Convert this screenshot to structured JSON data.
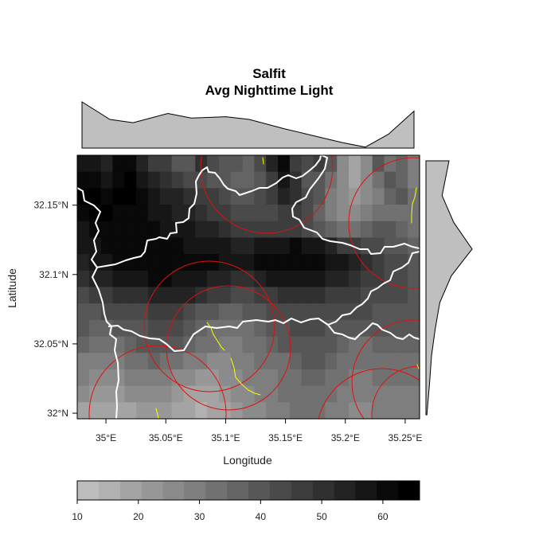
{
  "title": {
    "line1": "Salfit",
    "line2": "Avg Nighttime Light"
  },
  "axes": {
    "xlabel": "Longitude",
    "ylabel": "Latitude",
    "x_ticks": [
      {
        "value": 35.0,
        "label": "35°E"
      },
      {
        "value": 35.05,
        "label": "35.05°E"
      },
      {
        "value": 35.1,
        "label": "35.1°E"
      },
      {
        "value": 35.15,
        "label": "35.15°E"
      },
      {
        "value": 35.2,
        "label": "35.2°E"
      },
      {
        "value": 35.25,
        "label": "35.25°E"
      }
    ],
    "y_ticks": [
      {
        "value": 32.0,
        "label": "32°N"
      },
      {
        "value": 32.05,
        "label": "32.05°N"
      },
      {
        "value": 32.1,
        "label": "32.1°N"
      },
      {
        "value": 32.15,
        "label": "32.15°N"
      }
    ]
  },
  "chart_data": {
    "type": "heatmap",
    "description_note": "raster of average nighttime light with marginal density plots",
    "xlim": [
      34.976,
      35.262
    ],
    "ylim": [
      31.996,
      32.186
    ],
    "colorbar": {
      "min": 10,
      "max": 66,
      "ticks": [
        10,
        20,
        30,
        40,
        50,
        60
      ],
      "colors": [
        "#bdbdbd",
        "#b1b1b1",
        "#a4a4a4",
        "#989898",
        "#8b8b8b",
        "#7e7e7e",
        "#717171",
        "#646464",
        "#575757",
        "#4a4a4a",
        "#3d3d3d",
        "#303030",
        "#232323",
        "#161616",
        "#090909",
        "#000000"
      ]
    },
    "top_marginal": {
      "x": [
        34.976,
        35.0,
        35.02,
        35.05,
        35.07,
        35.1,
        35.12,
        35.15,
        35.17,
        35.2,
        35.22,
        35.24,
        35.262
      ],
      "density": [
        1.0,
        0.62,
        0.55,
        0.75,
        0.65,
        0.68,
        0.62,
        0.42,
        0.3,
        0.12,
        0.02,
        0.3,
        0.8
      ]
    },
    "right_marginal": {
      "y": [
        31.996,
        32.02,
        32.04,
        32.06,
        32.08,
        32.1,
        32.12,
        32.14,
        32.16,
        32.186
      ],
      "density": [
        0.02,
        0.08,
        0.12,
        0.2,
        0.3,
        0.55,
        1.0,
        0.6,
        0.35,
        0.5
      ]
    },
    "grid": [
      [
        58,
        58,
        52,
        60,
        60,
        54,
        48,
        46,
        40,
        40,
        50,
        44,
        38,
        38,
        36,
        42,
        54,
        60,
        46,
        44,
        46,
        40,
        26,
        18,
        26,
        40,
        34,
        36,
        28
      ],
      [
        60,
        62,
        56,
        62,
        64,
        58,
        54,
        50,
        46,
        42,
        44,
        40,
        38,
        36,
        36,
        40,
        48,
        58,
        50,
        40,
        40,
        32,
        26,
        20,
        24,
        34,
        38,
        36,
        30
      ],
      [
        64,
        64,
        62,
        64,
        64,
        60,
        56,
        54,
        52,
        50,
        48,
        46,
        42,
        40,
        40,
        42,
        46,
        52,
        50,
        44,
        38,
        30,
        24,
        22,
        24,
        30,
        36,
        38,
        32
      ],
      [
        62,
        64,
        64,
        62,
        62,
        62,
        58,
        56,
        54,
        52,
        50,
        48,
        46,
        44,
        42,
        42,
        44,
        46,
        46,
        42,
        36,
        30,
        26,
        26,
        28,
        32,
        34,
        34,
        32
      ],
      [
        58,
        60,
        62,
        62,
        62,
        62,
        60,
        58,
        58,
        56,
        54,
        52,
        50,
        48,
        46,
        46,
        46,
        46,
        46,
        44,
        40,
        36,
        34,
        34,
        36,
        38,
        38,
        36,
        34
      ],
      [
        56,
        58,
        60,
        62,
        62,
        62,
        62,
        62,
        60,
        58,
        58,
        58,
        56,
        54,
        54,
        56,
        58,
        58,
        60,
        58,
        56,
        52,
        48,
        46,
        44,
        42,
        40,
        38,
        36
      ],
      [
        54,
        56,
        58,
        60,
        60,
        62,
        62,
        62,
        62,
        60,
        60,
        60,
        58,
        58,
        58,
        60,
        62,
        62,
        62,
        62,
        60,
        58,
        56,
        52,
        50,
        46,
        44,
        42,
        40
      ],
      [
        50,
        52,
        54,
        58,
        58,
        58,
        60,
        60,
        58,
        56,
        56,
        54,
        52,
        50,
        50,
        52,
        56,
        58,
        58,
        58,
        56,
        54,
        52,
        50,
        48,
        46,
        44,
        42,
        40
      ],
      [
        44,
        46,
        48,
        50,
        50,
        50,
        52,
        54,
        54,
        52,
        50,
        48,
        46,
        44,
        44,
        46,
        48,
        50,
        50,
        50,
        50,
        48,
        46,
        46,
        44,
        44,
        42,
        42,
        40
      ],
      [
        40,
        40,
        42,
        44,
        44,
        44,
        46,
        48,
        48,
        44,
        40,
        38,
        36,
        36,
        38,
        40,
        42,
        44,
        44,
        44,
        44,
        42,
        42,
        42,
        42,
        40,
        40,
        40,
        40
      ],
      [
        38,
        36,
        36,
        38,
        40,
        40,
        42,
        44,
        42,
        40,
        36,
        34,
        32,
        32,
        34,
        36,
        38,
        40,
        42,
        42,
        42,
        40,
        38,
        38,
        38,
        38,
        38,
        38,
        38
      ],
      [
        36,
        34,
        34,
        34,
        36,
        38,
        40,
        40,
        38,
        36,
        34,
        32,
        30,
        30,
        32,
        34,
        36,
        38,
        40,
        40,
        40,
        38,
        36,
        34,
        34,
        36,
        36,
        36,
        36
      ],
      [
        30,
        30,
        30,
        30,
        32,
        34,
        36,
        34,
        32,
        30,
        28,
        26,
        26,
        28,
        30,
        32,
        32,
        34,
        36,
        38,
        38,
        36,
        34,
        32,
        32,
        34,
        34,
        34,
        34
      ],
      [
        28,
        26,
        26,
        26,
        28,
        30,
        30,
        28,
        26,
        24,
        22,
        22,
        24,
        26,
        28,
        30,
        30,
        32,
        34,
        36,
        36,
        34,
        32,
        30,
        30,
        32,
        32,
        32,
        32
      ],
      [
        24,
        22,
        22,
        22,
        24,
        26,
        26,
        24,
        22,
        20,
        20,
        20,
        22,
        24,
        26,
        28,
        30,
        32,
        34,
        34,
        34,
        32,
        30,
        28,
        28,
        30,
        30,
        30,
        30
      ],
      [
        20,
        18,
        18,
        18,
        20,
        22,
        22,
        22,
        20,
        18,
        16,
        18,
        20,
        22,
        24,
        26,
        28,
        30,
        32,
        32,
        32,
        30,
        28,
        26,
        26,
        28,
        28,
        28,
        28
      ]
    ]
  },
  "overlays": {
    "boundary_color": "#ffffff",
    "ring_color": "#e01010",
    "road_color": "#ffff00"
  }
}
